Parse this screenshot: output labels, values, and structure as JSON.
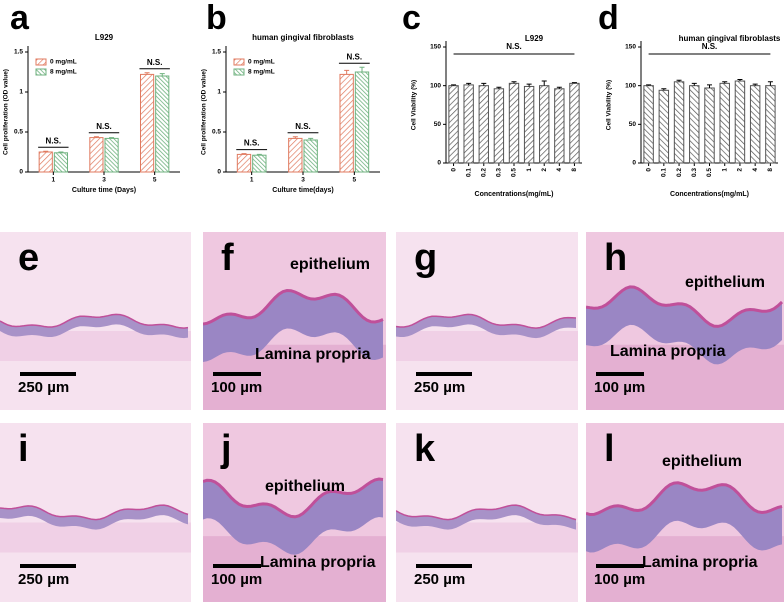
{
  "chart_data": [
    {
      "type": "bar",
      "panel": "a",
      "title": "L929",
      "ylabel": "Cell proliferation (OD value)",
      "xlabel": "Culture time (Days)",
      "categories": [
        "1",
        "3",
        "5"
      ],
      "series": [
        {
          "name": "0 mg/mL",
          "color": "#e07a5f",
          "values": [
            0.25,
            0.43,
            1.22
          ],
          "errors": [
            0.01,
            0.01,
            0.02
          ]
        },
        {
          "name": "8 mg/mL",
          "color": "#6fb27f",
          "values": [
            0.24,
            0.42,
            1.2
          ],
          "errors": [
            0.01,
            0.01,
            0.03
          ]
        }
      ],
      "annotations": [
        "N.S.",
        "N.S.",
        "N.S."
      ],
      "ylim": [
        0,
        1.5
      ],
      "yticks": [
        0,
        0.5,
        1,
        1.5
      ]
    },
    {
      "type": "bar",
      "panel": "b",
      "title": "human gingival fibroblasts",
      "ylabel": "Cell proliferation (OD value)",
      "xlabel": "Culture time(days)",
      "categories": [
        "1",
        "3",
        "5"
      ],
      "series": [
        {
          "name": "0 mg/mL",
          "color": "#e07a5f",
          "values": [
            0.22,
            0.42,
            1.22
          ],
          "errors": [
            0.01,
            0.02,
            0.05
          ]
        },
        {
          "name": "8 mg/mL",
          "color": "#6fb27f",
          "values": [
            0.21,
            0.4,
            1.25
          ],
          "errors": [
            0.01,
            0.02,
            0.06
          ]
        }
      ],
      "annotations": [
        "N.S.",
        "N.S.",
        "N.S."
      ],
      "ylim": [
        0,
        1.5
      ],
      "yticks": [
        0,
        0.5,
        1,
        1.5
      ]
    },
    {
      "type": "bar",
      "panel": "c",
      "title": "L929",
      "ylabel": "Cell Viability (%)",
      "xlabel": "Concentrations(mg/mL)",
      "categories": [
        "0",
        "0.1",
        "0.2",
        "0.3",
        "0.5",
        "1",
        "2",
        "4",
        "8"
      ],
      "series": [
        {
          "color": "#555555",
          "values": [
            100,
            101,
            100,
            96,
            103,
            99,
            100,
            96,
            103
          ],
          "errors": [
            1,
            2,
            3,
            2,
            2,
            3,
            6,
            2,
            1
          ]
        }
      ],
      "annotations": [
        "N.S."
      ],
      "ylim": [
        0,
        150
      ],
      "yticks": [
        0,
        50,
        100,
        150
      ]
    },
    {
      "type": "bar",
      "panel": "d",
      "title": "human gingival fibroblasts",
      "ylabel": "Cell Viability (%)",
      "xlabel": "Concentrations(mg/mL)",
      "categories": [
        "0",
        "0.1",
        "0.2",
        "0.3",
        "0.5",
        "1",
        "2",
        "4",
        "8"
      ],
      "series": [
        {
          "color": "#555555",
          "values": [
            100,
            94,
            105,
            100,
            97,
            103,
            106,
            100,
            100
          ],
          "errors": [
            1,
            2,
            2,
            3,
            4,
            2,
            2,
            2,
            5
          ]
        }
      ],
      "annotations": [
        "N.S."
      ],
      "ylim": [
        0,
        150
      ],
      "yticks": [
        0,
        50,
        100,
        150
      ]
    }
  ],
  "panels": [
    {
      "label": "e",
      "scale_bar": "250 µm"
    },
    {
      "label": "f",
      "scale_bar": "100 µm",
      "upper": "epithelium",
      "lower": "Lamina propria"
    },
    {
      "label": "g",
      "scale_bar": "250 µm"
    },
    {
      "label": "h",
      "scale_bar": "100 µm",
      "upper": "epithelium",
      "lower": "Lamina propria"
    },
    {
      "label": "i",
      "scale_bar": "250 µm"
    },
    {
      "label": "j",
      "scale_bar": "100 µm",
      "upper": "epithelium",
      "lower": "Lamina propria"
    },
    {
      "label": "k",
      "scale_bar": "250 µm"
    },
    {
      "label": "l",
      "scale_bar": "100 µm",
      "upper": "epithelium",
      "lower": "Lamina propria"
    }
  ]
}
